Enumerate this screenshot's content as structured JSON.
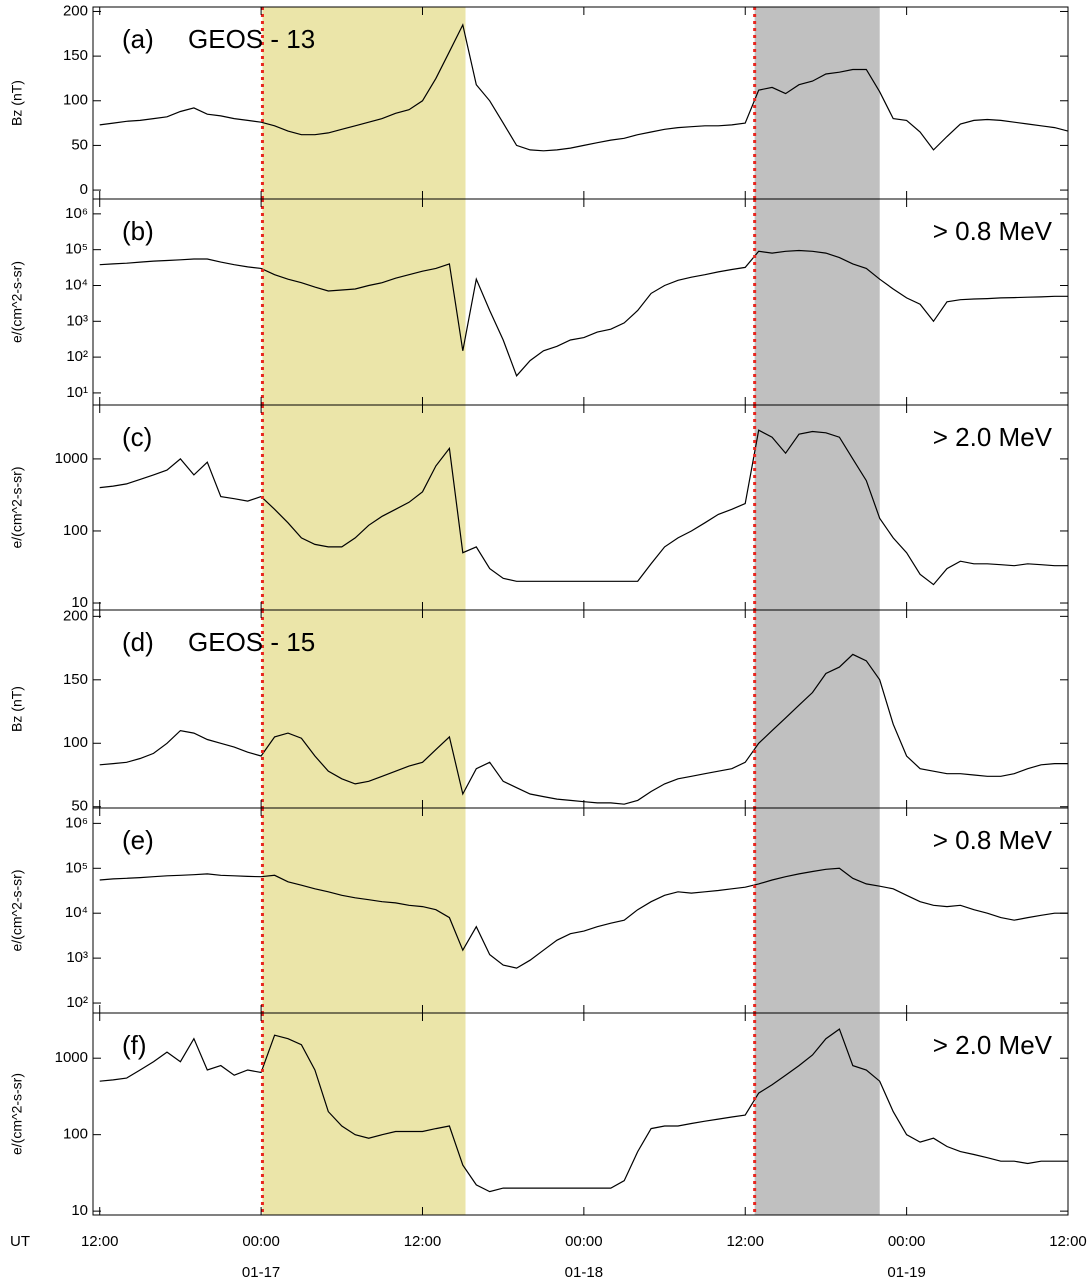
{
  "chart_data": [
    {
      "type": "line",
      "panel_label": "(a)",
      "title": "GEOS - 13",
      "ylabel": "Bz  (nT)",
      "log_scale": false,
      "color": "#000000",
      "xlim": [
        -0.5,
        72
      ],
      "ylim": [
        -10,
        205
      ],
      "yticks": [
        0,
        50,
        100,
        150,
        200
      ],
      "x": [
        0,
        1,
        2,
        3,
        4,
        5,
        6,
        7,
        8,
        9,
        10,
        11,
        12,
        13,
        14,
        15,
        16,
        17,
        18,
        19,
        20,
        21,
        22,
        23,
        24,
        25,
        26,
        27,
        28,
        29,
        30,
        31,
        32,
        33,
        34,
        35,
        36,
        37,
        38,
        39,
        40,
        41,
        42,
        43,
        44,
        45,
        46,
        47,
        48,
        49,
        50,
        51,
        52,
        53,
        54,
        55,
        56,
        57,
        58,
        59,
        60,
        61,
        62,
        63,
        64,
        65,
        66,
        67,
        68,
        69,
        70,
        71,
        72
      ],
      "values": [
        73,
        75,
        77,
        78,
        80,
        82,
        88,
        92,
        85,
        83,
        80,
        78,
        76,
        72,
        66,
        62,
        62,
        64,
        68,
        72,
        76,
        80,
        86,
        90,
        100,
        125,
        155,
        185,
        118,
        100,
        75,
        50,
        45,
        44,
        45,
        47,
        50,
        53,
        56,
        58,
        62,
        65,
        68,
        70,
        71,
        72,
        72,
        73,
        75,
        112,
        115,
        108,
        118,
        122,
        130,
        132,
        135,
        135,
        110,
        80,
        78,
        65,
        45,
        60,
        74,
        78,
        79,
        78,
        76,
        74,
        72,
        70,
        66
      ]
    },
    {
      "type": "line",
      "panel_label": "(b)",
      "annotation": "> 0.8 MeV",
      "ylabel": "e/(cm^2-s-sr)",
      "log_scale": true,
      "color": "#000000",
      "xlim": [
        -0.5,
        72
      ],
      "ylim": [
        4.6,
        2600000
      ],
      "yticks": [
        {
          "value": 10,
          "label": "10¹"
        },
        {
          "value": 100,
          "label": "10²"
        },
        {
          "value": 1000,
          "label": "10³"
        },
        {
          "value": 10000,
          "label": "10⁴"
        },
        {
          "value": 100000,
          "label": "10⁵"
        },
        {
          "value": 1000000,
          "label": "10⁶"
        }
      ],
      "x": [
        0,
        1,
        2,
        3,
        4,
        5,
        6,
        7,
        8,
        9,
        10,
        11,
        12,
        13,
        14,
        15,
        16,
        17,
        18,
        19,
        20,
        21,
        22,
        23,
        24,
        25,
        26,
        27,
        28,
        29,
        30,
        31,
        32,
        33,
        34,
        35,
        36,
        37,
        38,
        39,
        40,
        41,
        42,
        43,
        44,
        45,
        46,
        47,
        48,
        49,
        50,
        51,
        52,
        53,
        54,
        55,
        56,
        57,
        58,
        59,
        60,
        61,
        62,
        63,
        64,
        65,
        66,
        67,
        68,
        69,
        70,
        71,
        72
      ],
      "values": [
        38000,
        40000,
        42000,
        45000,
        48000,
        50000,
        52000,
        55000,
        55000,
        45000,
        38000,
        33000,
        30000,
        20000,
        15000,
        12000,
        9000,
        7000,
        7500,
        8000,
        10000,
        12000,
        16000,
        20000,
        25000,
        30000,
        40000,
        150,
        15000,
        2000,
        300,
        30,
        80,
        150,
        200,
        300,
        350,
        500,
        600,
        900,
        2000,
        6000,
        10000,
        14000,
        17000,
        20000,
        24000,
        28000,
        32000,
        90000,
        80000,
        90000,
        95000,
        90000,
        80000,
        60000,
        40000,
        30000,
        15000,
        8000,
        4500,
        3000,
        1000,
        3500,
        4000,
        4200,
        4300,
        4500,
        4600,
        4700,
        4800,
        5000,
        5000
      ]
    },
    {
      "type": "line",
      "panel_label": "(c)",
      "annotation": "> 2.0 MeV",
      "ylabel": "e/(cm^2-s-sr)",
      "log_scale": true,
      "color": "#000000",
      "xlim": [
        -0.5,
        72
      ],
      "ylim": [
        8,
        5600
      ],
      "yticks": [
        10,
        100,
        1000
      ],
      "x": [
        0,
        1,
        2,
        3,
        4,
        5,
        6,
        7,
        8,
        9,
        10,
        11,
        12,
        13,
        14,
        15,
        16,
        17,
        18,
        19,
        20,
        21,
        22,
        23,
        24,
        25,
        26,
        27,
        28,
        29,
        30,
        31,
        32,
        33,
        34,
        35,
        36,
        37,
        38,
        39,
        40,
        41,
        42,
        43,
        44,
        45,
        46,
        47,
        48,
        49,
        50,
        51,
        52,
        53,
        54,
        55,
        56,
        57,
        58,
        59,
        60,
        61,
        62,
        63,
        64,
        65,
        66,
        67,
        68,
        69,
        70,
        71,
        72
      ],
      "values": [
        400,
        420,
        450,
        520,
        600,
        700,
        1000,
        600,
        900,
        300,
        280,
        260,
        300,
        200,
        130,
        80,
        65,
        60,
        60,
        80,
        120,
        160,
        200,
        250,
        350,
        800,
        1400,
        50,
        60,
        30,
        22,
        20,
        20,
        20,
        20,
        20,
        20,
        20,
        20,
        20,
        20,
        35,
        60,
        80,
        100,
        130,
        170,
        200,
        240,
        2500,
        2000,
        1200,
        2200,
        2400,
        2300,
        2000,
        1000,
        500,
        150,
        80,
        50,
        25,
        18,
        30,
        38,
        35,
        35,
        34,
        33,
        35,
        34,
        33,
        33
      ]
    },
    {
      "type": "line",
      "panel_label": "(d)",
      "title": "GEOS - 15",
      "ylabel": "Bz  (nT)",
      "log_scale": false,
      "color": "#000000",
      "xlim": [
        -0.5,
        72
      ],
      "ylim": [
        49,
        205
      ],
      "yticks": [
        50,
        100,
        150,
        200
      ],
      "x": [
        0,
        1,
        2,
        3,
        4,
        5,
        6,
        7,
        8,
        9,
        10,
        11,
        12,
        13,
        14,
        15,
        16,
        17,
        18,
        19,
        20,
        21,
        22,
        23,
        24,
        25,
        26,
        27,
        28,
        29,
        30,
        31,
        32,
        33,
        34,
        35,
        36,
        37,
        38,
        39,
        40,
        41,
        42,
        43,
        44,
        45,
        46,
        47,
        48,
        49,
        50,
        51,
        52,
        53,
        54,
        55,
        56,
        57,
        58,
        59,
        60,
        61,
        62,
        63,
        64,
        65,
        66,
        67,
        68,
        69,
        70,
        71,
        72
      ],
      "values": [
        83,
        84,
        85,
        88,
        92,
        100,
        110,
        108,
        103,
        100,
        97,
        93,
        90,
        105,
        108,
        104,
        90,
        78,
        72,
        68,
        70,
        74,
        78,
        82,
        85,
        95,
        105,
        60,
        80,
        85,
        70,
        65,
        60,
        58,
        56,
        55,
        54,
        53,
        53,
        52,
        55,
        62,
        68,
        72,
        74,
        76,
        78,
        80,
        85,
        100,
        110,
        120,
        130,
        140,
        155,
        160,
        170,
        165,
        150,
        115,
        90,
        80,
        78,
        76,
        76,
        75,
        74,
        74,
        76,
        80,
        83,
        84,
        84
      ]
    },
    {
      "type": "line",
      "panel_label": "(e)",
      "annotation": "> 0.8 MeV",
      "ylabel": "e/(cm^2-s-sr)",
      "log_scale": true,
      "color": "#000000",
      "xlim": [
        -0.5,
        72
      ],
      "ylim": [
        60,
        2200000
      ],
      "yticks": [
        {
          "value": 100,
          "label": "10²"
        },
        {
          "value": 1000,
          "label": "10³"
        },
        {
          "value": 10000,
          "label": "10⁴"
        },
        {
          "value": 100000,
          "label": "10⁵"
        },
        {
          "value": 1000000,
          "label": "10⁶"
        }
      ],
      "x": [
        0,
        1,
        2,
        3,
        4,
        5,
        6,
        7,
        8,
        9,
        10,
        11,
        12,
        13,
        14,
        15,
        16,
        17,
        18,
        19,
        20,
        21,
        22,
        23,
        24,
        25,
        26,
        27,
        28,
        29,
        30,
        31,
        32,
        33,
        34,
        35,
        36,
        37,
        38,
        39,
        40,
        41,
        42,
        43,
        44,
        45,
        46,
        47,
        48,
        49,
        50,
        51,
        52,
        53,
        54,
        55,
        56,
        57,
        58,
        59,
        60,
        61,
        62,
        63,
        64,
        65,
        66,
        67,
        68,
        69,
        70,
        71,
        72
      ],
      "values": [
        55000,
        58000,
        60000,
        62000,
        65000,
        68000,
        70000,
        72000,
        75000,
        70000,
        68000,
        66000,
        65000,
        70000,
        50000,
        42000,
        35000,
        30000,
        25000,
        22000,
        20000,
        18000,
        17000,
        15000,
        14000,
        12000,
        8000,
        1500,
        5000,
        1200,
        700,
        600,
        900,
        1500,
        2500,
        3500,
        4000,
        5000,
        6000,
        7000,
        12000,
        18000,
        25000,
        30000,
        28000,
        30000,
        32000,
        35000,
        38000,
        45000,
        55000,
        65000,
        75000,
        85000,
        95000,
        100000,
        60000,
        45000,
        40000,
        35000,
        25000,
        18000,
        15000,
        14000,
        15000,
        12000,
        10000,
        8000,
        7000,
        8000,
        9000,
        10000,
        10000
      ]
    },
    {
      "type": "line",
      "panel_label": "(f)",
      "annotation": "> 2.0 MeV",
      "ylabel": "e/(cm^2-s-sr)",
      "log_scale": true,
      "color": "#000000",
      "xlim": [
        -0.5,
        72
      ],
      "ylim": [
        8.9,
        3900
      ],
      "yticks": [
        10,
        100,
        1000
      ],
      "xlabel": "UT",
      "xticks": [
        {
          "value": 0,
          "label": "12:00"
        },
        {
          "value": 12,
          "label": "00:00",
          "date": "01-17"
        },
        {
          "value": 24,
          "label": "12:00"
        },
        {
          "value": 36,
          "label": "00:00",
          "date": "01-18"
        },
        {
          "value": 48,
          "label": "12:00"
        },
        {
          "value": 60,
          "label": "00:00",
          "date": "01-19"
        },
        {
          "value": 72,
          "label": "12:00"
        }
      ],
      "x": [
        0,
        1,
        2,
        3,
        4,
        5,
        6,
        7,
        8,
        9,
        10,
        11,
        12,
        13,
        14,
        15,
        16,
        17,
        18,
        19,
        20,
        21,
        22,
        23,
        24,
        25,
        26,
        27,
        28,
        29,
        30,
        31,
        32,
        33,
        34,
        35,
        36,
        37,
        38,
        39,
        40,
        41,
        42,
        43,
        44,
        45,
        46,
        47,
        48,
        49,
        50,
        51,
        52,
        53,
        54,
        55,
        56,
        57,
        58,
        59,
        60,
        61,
        62,
        63,
        64,
        65,
        66,
        67,
        68,
        69,
        70,
        71,
        72
      ],
      "values": [
        500,
        520,
        550,
        700,
        900,
        1200,
        900,
        1800,
        700,
        800,
        600,
        700,
        650,
        2000,
        1800,
        1500,
        700,
        200,
        130,
        100,
        90,
        100,
        110,
        110,
        110,
        120,
        130,
        40,
        22,
        18,
        20,
        20,
        20,
        20,
        20,
        20,
        20,
        20,
        20,
        25,
        60,
        120,
        130,
        130,
        140,
        150,
        160,
        170,
        180,
        350,
        450,
        600,
        800,
        1100,
        1800,
        2400,
        800,
        700,
        500,
        200,
        100,
        80,
        90,
        70,
        60,
        55,
        50,
        45,
        45,
        42,
        45,
        45,
        45
      ]
    }
  ],
  "overlays": {
    "shaded": [
      {
        "x": [
          12.1,
          27.2
        ],
        "color": "#ebe5a9"
      },
      {
        "x": [
          48.7,
          58
        ],
        "color": "#c0c0c0"
      }
    ],
    "event_lines": {
      "x": [
        12.1,
        48.7
      ],
      "color": "#e8261f"
    }
  }
}
